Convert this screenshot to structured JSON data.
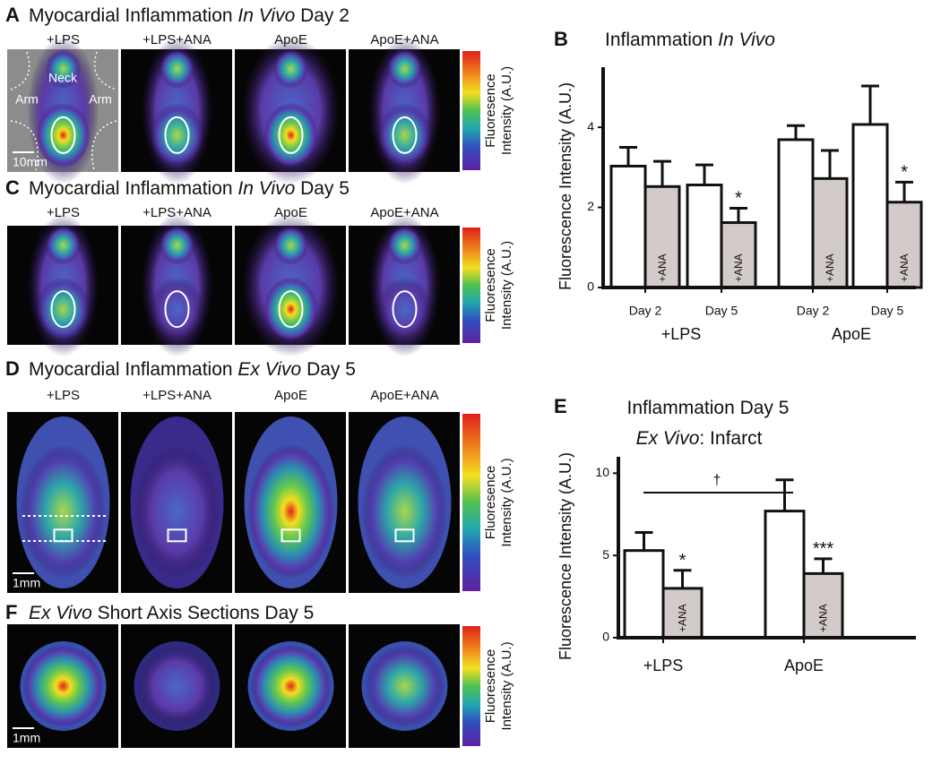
{
  "panels": [
    {
      "letter": "A",
      "title": [
        "Myocardial Inflammation ",
        "In Vivo",
        " Day 2"
      ],
      "columns": [
        "+LPS",
        "+LPS+ANA",
        "ApoE",
        "ApoE+ANA"
      ],
      "labels": [
        "Neck",
        "Arm",
        "Arm"
      ],
      "scale": "10mm",
      "colorbar": [
        "Fluoresence",
        "Intensity (A.U.)"
      ]
    },
    {
      "letter": "C",
      "title": [
        "Myocardial Inflammation ",
        "In Vivo",
        " Day 5"
      ],
      "columns": [
        "+LPS",
        "+LPS+ANA",
        "ApoE",
        "ApoE+ANA"
      ],
      "colorbar": [
        "Fluoresence",
        "Intensity (A.U.)"
      ]
    },
    {
      "letter": "D",
      "title": [
        "Myocardial Inflammation ",
        "Ex Vivo",
        " Day 5"
      ],
      "columns": [
        "+LPS",
        "+LPS+ANA",
        "ApoE",
        "ApoE+ANA"
      ],
      "scale": "1mm",
      "colorbar": [
        "Fluoresence",
        "Intensity (A.U.)"
      ]
    },
    {
      "letter": "F",
      "title": [
        "Ex Vivo",
        " Short Axis Sections Day 5"
      ],
      "scale": "1mm",
      "colorbar": [
        "Fluoresence",
        "Intensity (A.U.)"
      ]
    }
  ],
  "chart_data": [
    {
      "type": "bar",
      "letter": "B",
      "title": [
        "Inflammation ",
        "In Vivo"
      ],
      "ylabel": "Fluorescence Intensity (A.U.)",
      "categories": [
        "Day 2",
        "Day 5",
        "Day 2",
        "Day 5"
      ],
      "groups": [
        "+LPS",
        "ApoE"
      ],
      "series": [
        {
          "color": "#ffffff",
          "values": [
            3.03,
            2.56,
            3.69,
            4.07
          ],
          "errors": [
            0.47,
            0.5,
            0.35,
            0.96
          ]
        },
        {
          "name": "+ANA",
          "color": "#d3cbc9",
          "values": [
            2.52,
            1.62,
            2.72,
            2.13
          ],
          "errors": [
            0.63,
            0.36,
            0.7,
            0.5
          ],
          "significance": [
            null,
            "*",
            null,
            "*"
          ]
        }
      ],
      "ylim": [
        0,
        5.5
      ],
      "yticks": [
        0,
        2,
        4
      ]
    },
    {
      "type": "bar",
      "letter": "E",
      "title": [
        "Inflammation Day 5"
      ],
      "subtitle": [
        "Ex Vivo",
        ": Infarct"
      ],
      "ylabel": "Fluorescence Intensity (A.U.)",
      "categories": [
        "+LPS",
        "ApoE"
      ],
      "series": [
        {
          "color": "#ffffff",
          "values": [
            5.3,
            7.7
          ],
          "errors": [
            1.1,
            1.9
          ]
        },
        {
          "name": "+ANA",
          "color": "#d3cbc9",
          "values": [
            3.0,
            3.9
          ],
          "errors": [
            1.1,
            0.9
          ],
          "significance": [
            "*",
            "***"
          ]
        }
      ],
      "bracket": "†",
      "ylim": [
        0,
        11
      ],
      "yticks": [
        0,
        5,
        10
      ]
    }
  ]
}
